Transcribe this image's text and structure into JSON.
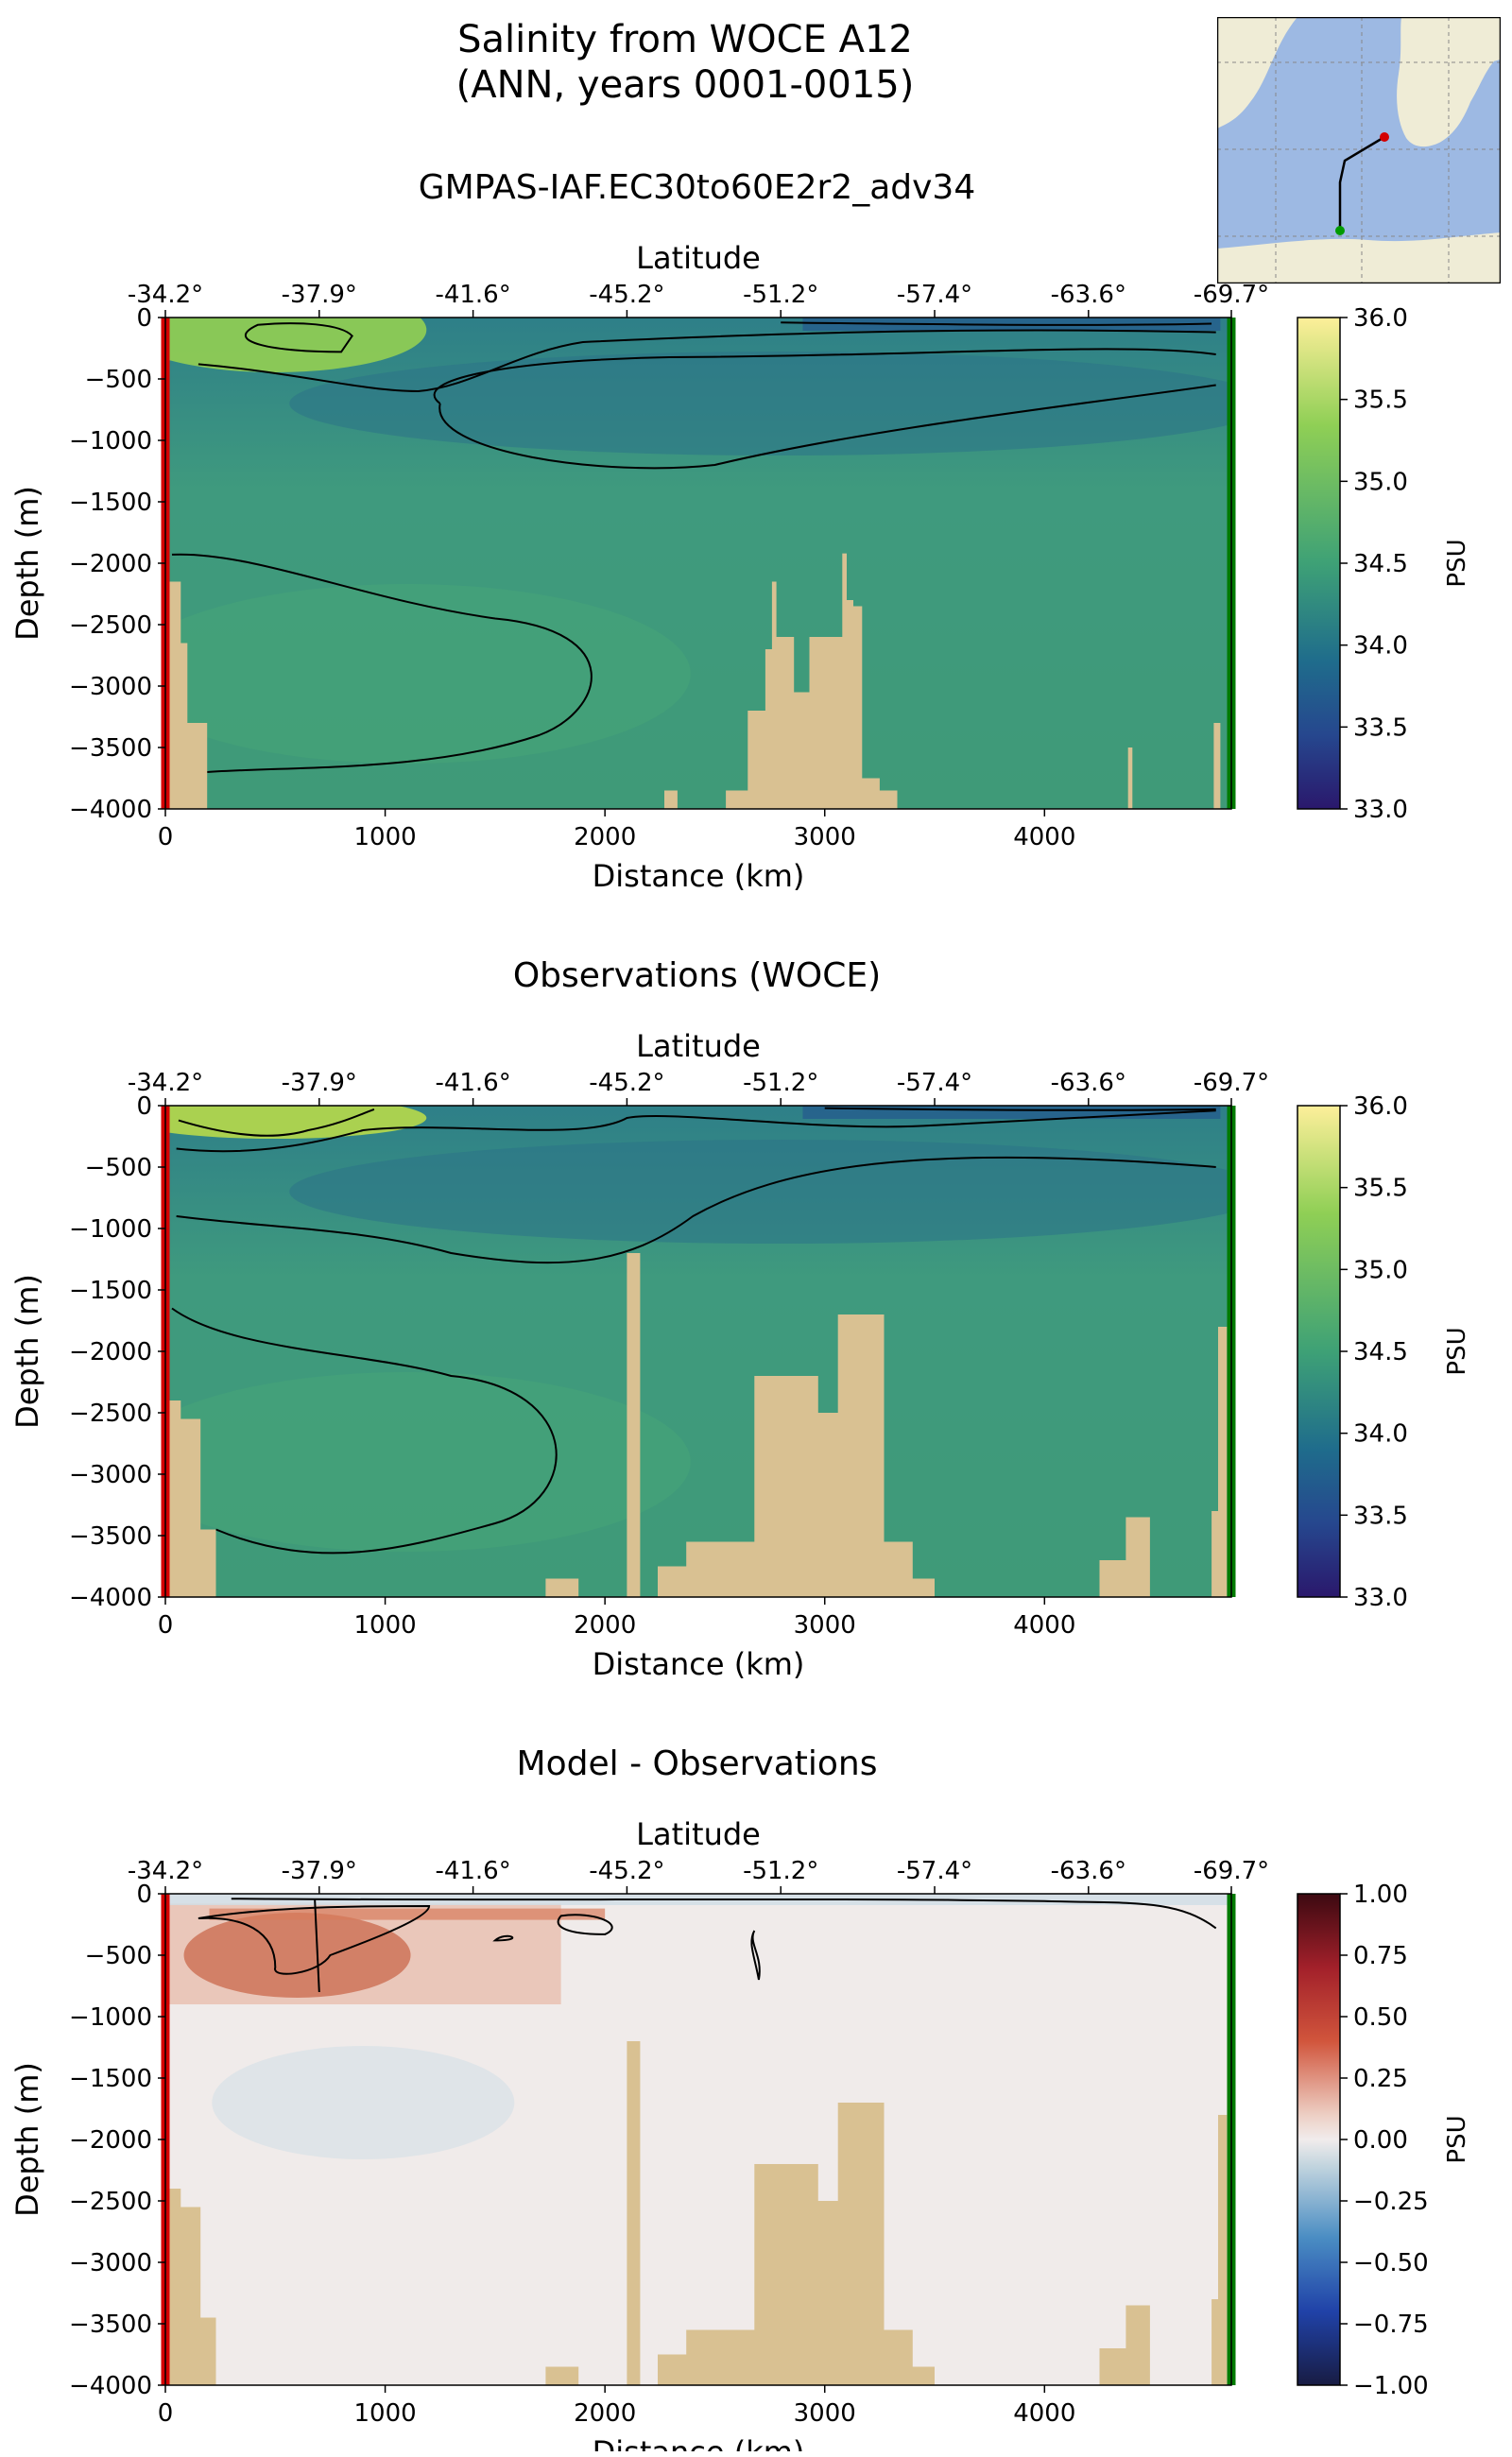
{
  "figure": {
    "title_line1": "Salinity from WOCE A12",
    "title_line2": "(ANN, years 0001-0015)"
  },
  "colors": {
    "land": "#d9c192",
    "ocean_map": "#9db9e3",
    "continent_map": "#efecd6",
    "transect_start": "#d40000",
    "transect_end": "#007a00"
  },
  "axes_common": {
    "top_label": "Latitude",
    "lat_ticks": [
      "-34.2°",
      "-37.9°",
      "-41.6°",
      "-45.2°",
      "-51.2°",
      "-57.4°",
      "-63.6°",
      "-69.7°"
    ],
    "lat_tick_km": [
      0,
      700,
      1400,
      2100,
      2800,
      3500,
      4200,
      4850
    ],
    "x_label": "Distance (km)",
    "x_ticks": [
      "0",
      "1000",
      "2000",
      "3000",
      "4000"
    ],
    "x_tick_values": [
      0,
      1000,
      2000,
      3000,
      4000
    ],
    "y_label": "Depth (m)",
    "y_ticks": [
      "0",
      "−500",
      "−1000",
      "−1500",
      "−2000",
      "−2500",
      "−3000",
      "−3500",
      "−4000"
    ],
    "y_tick_values": [
      0,
      -500,
      -1000,
      -1500,
      -2000,
      -2500,
      -3000,
      -3500,
      -4000
    ],
    "xlim": [
      0,
      4850
    ],
    "ylim": [
      -4000,
      0
    ],
    "colorbar_label": "PSU"
  },
  "panels": [
    {
      "title": "GMPAS-IAF.EC30to60E2r2_adv34",
      "colormap": "haline",
      "cbar_ticks": [
        "36.0",
        "35.5",
        "35.0",
        "34.5",
        "34.0",
        "33.5",
        "33.0"
      ],
      "cbar_values": [
        36.0,
        35.5,
        35.0,
        34.5,
        34.0,
        33.5,
        33.0
      ]
    },
    {
      "title": "Observations (WOCE)",
      "colormap": "haline",
      "cbar_ticks": [
        "36.0",
        "35.5",
        "35.0",
        "34.5",
        "34.0",
        "33.5",
        "33.0"
      ],
      "cbar_values": [
        36.0,
        35.5,
        35.0,
        34.5,
        34.0,
        33.5,
        33.0
      ]
    },
    {
      "title": "Model - Observations",
      "colormap": "balance",
      "cbar_ticks": [
        "1.00",
        "0.75",
        "0.50",
        "0.25",
        "0.00",
        "−0.25",
        "−0.50",
        "−0.75",
        "−1.00"
      ],
      "cbar_values": [
        1.0,
        0.75,
        0.5,
        0.25,
        0.0,
        -0.25,
        -0.5,
        -0.75,
        -1.0
      ]
    }
  ],
  "chart_data": [
    {
      "type": "heatmap",
      "title": "GMPAS-IAF.EC30to60E2r2_adv34",
      "xlabel": "Distance (km)",
      "ylabel": "Depth (m)",
      "xlim": [
        0,
        4850
      ],
      "ylim": [
        -4000,
        0
      ],
      "colorbar": {
        "label": "PSU",
        "range": [
          33.0,
          36.0
        ]
      },
      "bathymetry_km_depth": [
        [
          0,
          -4000
        ],
        [
          0,
          -2150
        ],
        [
          70,
          -2150
        ],
        [
          70,
          -2650
        ],
        [
          100,
          -2650
        ],
        [
          100,
          -3300
        ],
        [
          190,
          -3300
        ],
        [
          190,
          -4000
        ],
        [
          2270,
          -4000
        ],
        [
          2270,
          -3850
        ],
        [
          2330,
          -3850
        ],
        [
          2330,
          -4000
        ],
        [
          2550,
          -4000
        ],
        [
          2550,
          -3850
        ],
        [
          2650,
          -3850
        ],
        [
          2650,
          -3200
        ],
        [
          2730,
          -3200
        ],
        [
          2730,
          -2700
        ],
        [
          2760,
          -2700
        ],
        [
          2760,
          -2150
        ],
        [
          2780,
          -2150
        ],
        [
          2780,
          -2600
        ],
        [
          2860,
          -2600
        ],
        [
          2860,
          -3050
        ],
        [
          2930,
          -3050
        ],
        [
          2930,
          -2600
        ],
        [
          3080,
          -2600
        ],
        [
          3080,
          -1920
        ],
        [
          3100,
          -1920
        ],
        [
          3100,
          -2300
        ],
        [
          3130,
          -2300
        ],
        [
          3130,
          -2350
        ],
        [
          3170,
          -2350
        ],
        [
          3170,
          -3750
        ],
        [
          3250,
          -3750
        ],
        [
          3250,
          -3850
        ],
        [
          3330,
          -3850
        ],
        [
          3330,
          -4000
        ],
        [
          4380,
          -4000
        ],
        [
          4380,
          -3500
        ],
        [
          4400,
          -3500
        ],
        [
          4400,
          -4000
        ],
        [
          4770,
          -4000
        ],
        [
          4770,
          -3300
        ],
        [
          4800,
          -3300
        ],
        [
          4800,
          -4000
        ]
      ],
      "contour_levels": [
        34.0,
        34.5,
        35.0
      ]
    },
    {
      "type": "heatmap",
      "title": "Observations (WOCE)",
      "xlabel": "Distance (km)",
      "ylabel": "Depth (m)",
      "xlim": [
        0,
        4850
      ],
      "ylim": [
        -4000,
        0
      ],
      "colorbar": {
        "label": "PSU",
        "range": [
          33.0,
          36.0
        ]
      },
      "bathymetry_km_depth": [
        [
          0,
          -4000
        ],
        [
          0,
          -2400
        ],
        [
          70,
          -2400
        ],
        [
          70,
          -2550
        ],
        [
          160,
          -2550
        ],
        [
          160,
          -3450
        ],
        [
          230,
          -3450
        ],
        [
          230,
          -4000
        ],
        [
          1730,
          -4000
        ],
        [
          1730,
          -3850
        ],
        [
          1880,
          -3850
        ],
        [
          1880,
          -4000
        ],
        [
          2100,
          -4000
        ],
        [
          2100,
          -1200
        ],
        [
          2160,
          -1200
        ],
        [
          2160,
          -4000
        ],
        [
          2240,
          -4000
        ],
        [
          2240,
          -3750
        ],
        [
          2370,
          -3750
        ],
        [
          2370,
          -3550
        ],
        [
          2680,
          -3550
        ],
        [
          2680,
          -2200
        ],
        [
          2970,
          -2200
        ],
        [
          2970,
          -2500
        ],
        [
          3060,
          -2500
        ],
        [
          3060,
          -1700
        ],
        [
          3270,
          -1700
        ],
        [
          3270,
          -3550
        ],
        [
          3400,
          -3550
        ],
        [
          3400,
          -3850
        ],
        [
          3500,
          -3850
        ],
        [
          3500,
          -4000
        ],
        [
          4250,
          -4000
        ],
        [
          4250,
          -3700
        ],
        [
          4370,
          -3700
        ],
        [
          4370,
          -3350
        ],
        [
          4480,
          -3350
        ],
        [
          4480,
          -4000
        ],
        [
          4760,
          -4000
        ],
        [
          4760,
          -3300
        ],
        [
          4790,
          -3300
        ],
        [
          4790,
          -1800
        ],
        [
          4830,
          -1800
        ],
        [
          4830,
          -4000
        ]
      ],
      "contour_levels": [
        34.0,
        34.5,
        35.0,
        35.5
      ]
    },
    {
      "type": "heatmap",
      "title": "Model - Observations",
      "xlabel": "Distance (km)",
      "ylabel": "Depth (m)",
      "xlim": [
        0,
        4850
      ],
      "ylim": [
        -4000,
        0
      ],
      "colorbar": {
        "label": "PSU",
        "range": [
          -1.0,
          1.0
        ]
      },
      "bathymetry_km_depth": [
        [
          0,
          -4000
        ],
        [
          0,
          -2400
        ],
        [
          70,
          -2400
        ],
        [
          70,
          -2550
        ],
        [
          160,
          -2550
        ],
        [
          160,
          -3450
        ],
        [
          230,
          -3450
        ],
        [
          230,
          -4000
        ],
        [
          1730,
          -4000
        ],
        [
          1730,
          -3850
        ],
        [
          1880,
          -3850
        ],
        [
          1880,
          -4000
        ],
        [
          2100,
          -4000
        ],
        [
          2100,
          -1200
        ],
        [
          2160,
          -1200
        ],
        [
          2160,
          -4000
        ],
        [
          2240,
          -4000
        ],
        [
          2240,
          -3750
        ],
        [
          2370,
          -3750
        ],
        [
          2370,
          -3550
        ],
        [
          2680,
          -3550
        ],
        [
          2680,
          -2200
        ],
        [
          2970,
          -2200
        ],
        [
          2970,
          -2500
        ],
        [
          3060,
          -2500
        ],
        [
          3060,
          -1700
        ],
        [
          3270,
          -1700
        ],
        [
          3270,
          -3550
        ],
        [
          3400,
          -3550
        ],
        [
          3400,
          -3850
        ],
        [
          3500,
          -3850
        ],
        [
          3500,
          -4000
        ],
        [
          4250,
          -4000
        ],
        [
          4250,
          -3700
        ],
        [
          4370,
          -3700
        ],
        [
          4370,
          -3350
        ],
        [
          4480,
          -3350
        ],
        [
          4480,
          -4000
        ],
        [
          4760,
          -4000
        ],
        [
          4760,
          -3300
        ],
        [
          4790,
          -3300
        ],
        [
          4790,
          -1800
        ],
        [
          4830,
          -1800
        ],
        [
          4830,
          -4000
        ]
      ],
      "contour_levels": [
        -0.25,
        0.25
      ]
    }
  ]
}
